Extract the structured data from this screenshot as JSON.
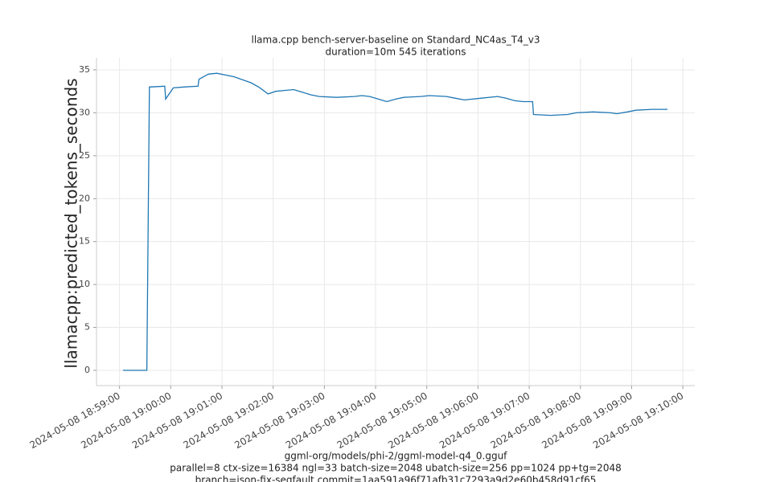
{
  "chart_data": {
    "type": "line",
    "title": [
      "llama.cpp bench-server-baseline on Standard_NC4as_T4_v3",
      "duration=10m 545 iterations"
    ],
    "ylabel": "llamacpp:predicted_tokens_seconds",
    "xlabel": [
      "ggml-org/models/phi-2/ggml-model-q4_0.gguf",
      "parallel=8 ctx-size=16384 ngl=33 batch-size=2048 ubatch-size=256 pp=1024 pp+tg=2048",
      "branch=json-fix-segfault commit=1aa591a96f71afb31c7293a9d2e60b458d91cf65"
    ],
    "color": "#1f77b4",
    "grid": true,
    "x": [
      "2024-05-08 18:59:04",
      "2024-05-08 18:59:32",
      "2024-05-08 18:59:35",
      "2024-05-08 18:59:53",
      "2024-05-08 18:59:54",
      "2024-05-08 19:00:03",
      "2024-05-08 19:00:15",
      "2024-05-08 19:00:32",
      "2024-05-08 19:00:33",
      "2024-05-08 19:00:44",
      "2024-05-08 19:00:54",
      "2024-05-08 19:01:04",
      "2024-05-08 19:01:14",
      "2024-05-08 19:01:34",
      "2024-05-08 19:01:43",
      "2024-05-08 19:01:54",
      "2024-05-08 19:02:03",
      "2024-05-08 19:02:13",
      "2024-05-08 19:02:24",
      "2024-05-08 19:02:34",
      "2024-05-08 19:02:44",
      "2024-05-08 19:02:54",
      "2024-05-08 19:03:14",
      "2024-05-08 19:03:35",
      "2024-05-08 19:03:44",
      "2024-05-08 19:03:53",
      "2024-05-08 19:04:03",
      "2024-05-08 19:04:13",
      "2024-05-08 19:04:24",
      "2024-05-08 19:04:33",
      "2024-05-08 19:04:53",
      "2024-05-08 19:05:03",
      "2024-05-08 19:05:23",
      "2024-05-08 19:05:33",
      "2024-05-08 19:05:44",
      "2024-05-08 19:06:04",
      "2024-05-08 19:06:23",
      "2024-05-08 19:06:33",
      "2024-05-08 19:06:43",
      "2024-05-08 19:06:53",
      "2024-05-08 19:07:04",
      "2024-05-08 19:07:05",
      "2024-05-08 19:07:25",
      "2024-05-08 19:07:45",
      "2024-05-08 19:07:55",
      "2024-05-08 19:08:15",
      "2024-05-08 19:08:35",
      "2024-05-08 19:08:43",
      "2024-05-08 19:08:55",
      "2024-05-08 19:09:05",
      "2024-05-08 19:09:24",
      "2024-05-08 19:09:42"
    ],
    "values": [
      0,
      0,
      33.0,
      33.1,
      31.6,
      32.9,
      33.0,
      33.1,
      33.9,
      34.5,
      34.6,
      34.4,
      34.2,
      33.5,
      33.0,
      32.2,
      32.5,
      32.6,
      32.7,
      32.4,
      32.1,
      31.9,
      31.8,
      31.9,
      32.0,
      31.9,
      31.6,
      31.3,
      31.6,
      31.8,
      31.9,
      32.0,
      31.9,
      31.7,
      31.5,
      31.7,
      31.9,
      31.7,
      31.4,
      31.3,
      31.3,
      29.8,
      29.7,
      29.8,
      30.0,
      30.1,
      30.0,
      29.9,
      30.1,
      30.3,
      30.4,
      30.4
    ],
    "xlim": [
      "2024-05-08 18:58:33",
      "2024-05-08 19:10:14"
    ],
    "xticks": [
      "2024-05-08 18:59:00",
      "2024-05-08 19:00:00",
      "2024-05-08 19:01:00",
      "2024-05-08 19:02:00",
      "2024-05-08 19:03:00",
      "2024-05-08 19:04:00",
      "2024-05-08 19:05:00",
      "2024-05-08 19:06:00",
      "2024-05-08 19:07:00",
      "2024-05-08 19:08:00",
      "2024-05-08 19:09:00",
      "2024-05-08 19:10:00"
    ],
    "ylim": [
      -1.78,
      36.4
    ],
    "yticks": [
      0,
      5,
      10,
      15,
      20,
      25,
      30,
      35
    ]
  }
}
